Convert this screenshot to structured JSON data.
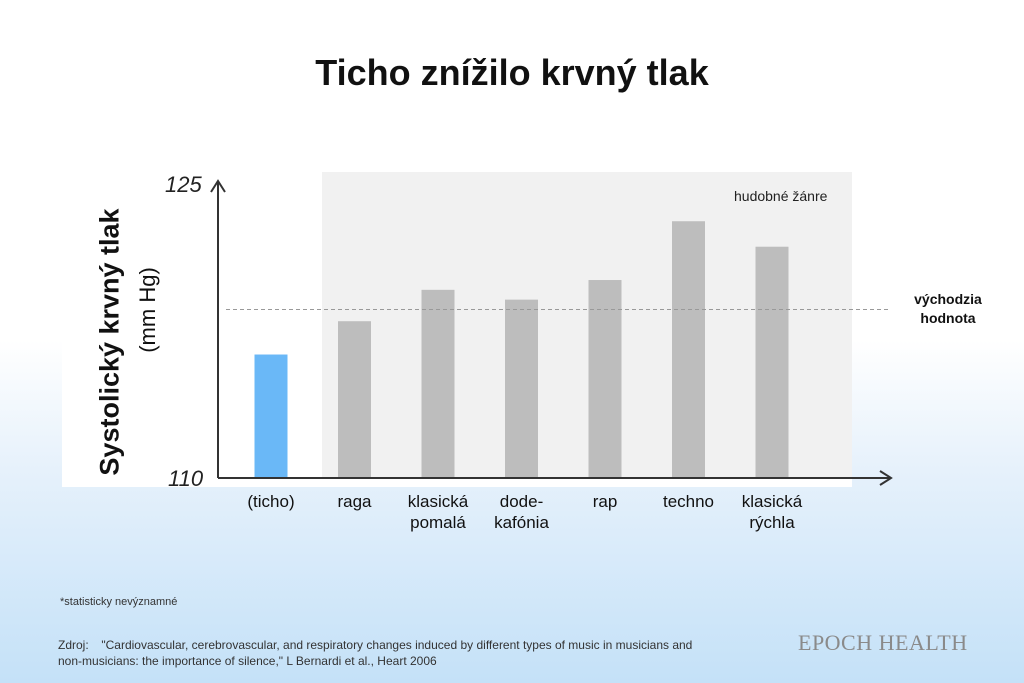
{
  "title": "Ticho znížilo krvný tlak",
  "chart_data": {
    "type": "bar",
    "title": "Ticho znížilo krvný tlak",
    "ylabel": "Systolický krvný tlak",
    "yunit": "(mm Hg)",
    "ylim": [
      110,
      125
    ],
    "yticks": [
      "110",
      "125"
    ],
    "categories": [
      "(ticho)",
      "raga",
      "klasická\npomalá",
      "dode-\nkafónia",
      "rap",
      "techno",
      "klasická\nrýchla"
    ],
    "values": [
      116.3,
      118.0,
      119.6,
      119.1,
      120.1,
      123.1,
      121.8
    ],
    "bar_colors": [
      "#6ab8f7",
      "#bdbdbd",
      "#bdbdbd",
      "#bdbdbd",
      "#bdbdbd",
      "#bdbdbd",
      "#bdbdbd"
    ],
    "baseline": {
      "value": 118.6,
      "label": "východzia\nhodnota"
    },
    "group_label": "hudobné žánre",
    "grid": false
  },
  "footnote": "*statisticky nevýznamné",
  "source": {
    "label": "Zdroj:",
    "text": "\"Cardiovascular, cerebrovascular, and respiratory changes induced by different types of music in musicians and non-musicians: the importance of silence,\" L Bernardi et al., Heart 2006"
  },
  "logo": "EPOCH HEALTH",
  "colors": {
    "silence": "#6ab8f7",
    "music": "#bdbdbd",
    "axis": "#333333"
  }
}
